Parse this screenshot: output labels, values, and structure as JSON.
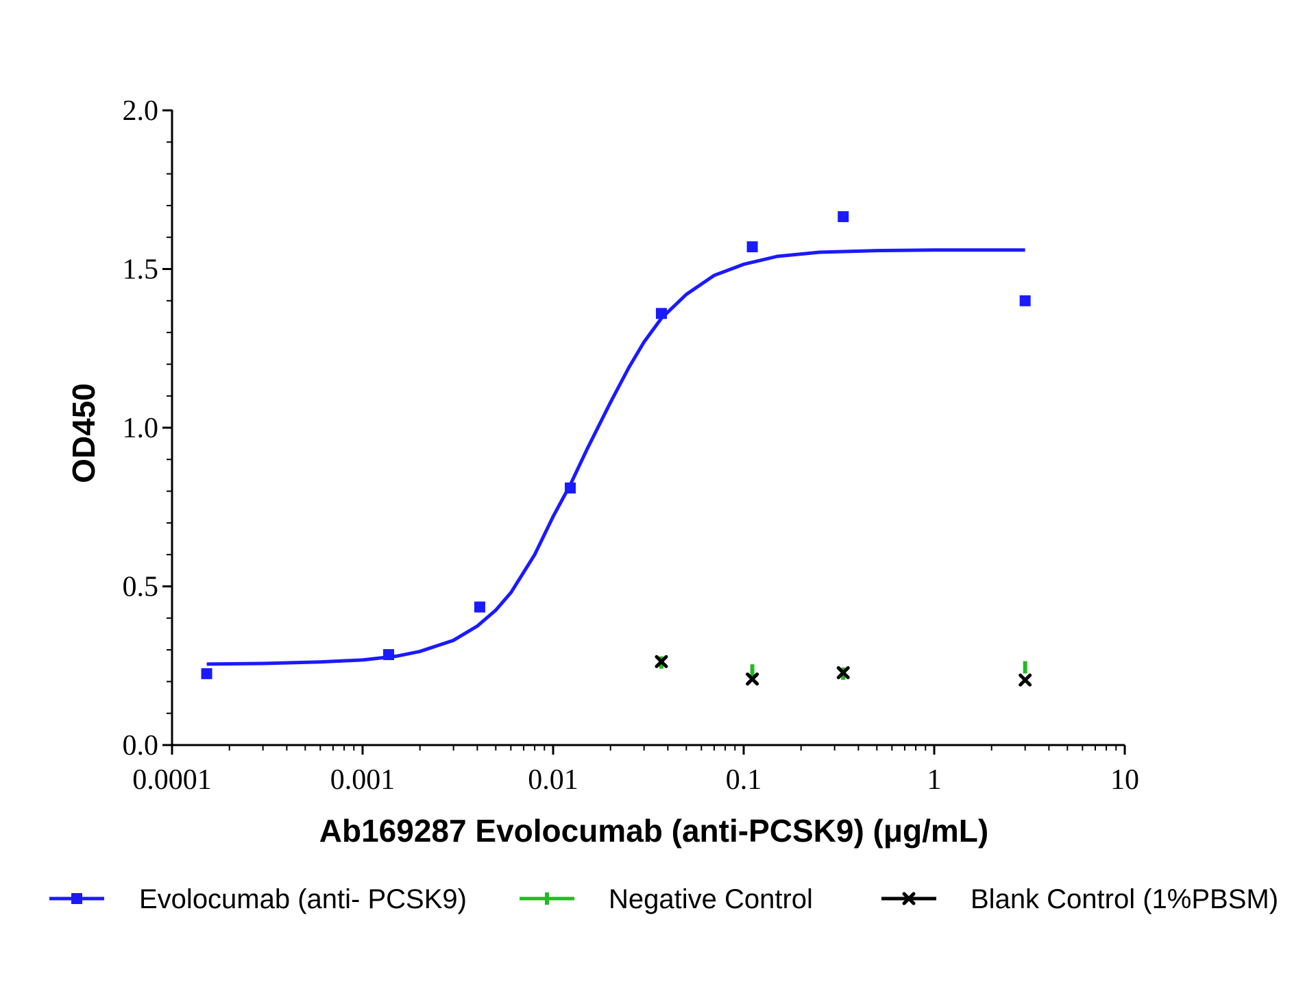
{
  "chart_data": {
    "type": "scatter",
    "title": "",
    "xlabel": "Ab169287 Evolocumab (anti-PCSK9) (μg/mL)",
    "ylabel": "OD450",
    "x_scale": "log",
    "xlim": [
      0.0001,
      10
    ],
    "ylim": [
      0,
      2.0
    ],
    "x_tick_labels": [
      "0.0001",
      "0.001",
      "0.01",
      "0.1",
      "1",
      "10"
    ],
    "x_tick_values": [
      0.0001,
      0.001,
      0.01,
      0.1,
      1,
      10
    ],
    "y_tick_labels": [
      "0.0",
      "0.5",
      "1.0",
      "1.5",
      "2.0"
    ],
    "y_tick_values": [
      0,
      0.5,
      1.0,
      1.5,
      2.0
    ],
    "grid": false,
    "legend_position": "bottom",
    "series": [
      {
        "name": "Evolocumab (anti- PCSK9)",
        "color": "#1a1aff",
        "marker": "square",
        "x": [
          0.000152,
          0.00137,
          0.00412,
          0.0123,
          0.037,
          0.111,
          0.333,
          3.0
        ],
        "y": [
          0.225,
          0.285,
          0.435,
          0.81,
          1.36,
          1.57,
          1.665,
          1.4
        ],
        "fit_curve": [
          {
            "x": 0.000152,
            "y": 0.255
          },
          {
            "x": 0.0003,
            "y": 0.257
          },
          {
            "x": 0.0006,
            "y": 0.262
          },
          {
            "x": 0.001,
            "y": 0.268
          },
          {
            "x": 0.0015,
            "y": 0.28
          },
          {
            "x": 0.002,
            "y": 0.295
          },
          {
            "x": 0.003,
            "y": 0.33
          },
          {
            "x": 0.004,
            "y": 0.375
          },
          {
            "x": 0.005,
            "y": 0.425
          },
          {
            "x": 0.006,
            "y": 0.48
          },
          {
            "x": 0.008,
            "y": 0.6
          },
          {
            "x": 0.01,
            "y": 0.72
          },
          {
            "x": 0.0123,
            "y": 0.82
          },
          {
            "x": 0.015,
            "y": 0.93
          },
          {
            "x": 0.02,
            "y": 1.08
          },
          {
            "x": 0.025,
            "y": 1.19
          },
          {
            "x": 0.03,
            "y": 1.27
          },
          {
            "x": 0.037,
            "y": 1.345
          },
          {
            "x": 0.05,
            "y": 1.42
          },
          {
            "x": 0.07,
            "y": 1.48
          },
          {
            "x": 0.1,
            "y": 1.515
          },
          {
            "x": 0.15,
            "y": 1.54
          },
          {
            "x": 0.25,
            "y": 1.553
          },
          {
            "x": 0.5,
            "y": 1.558
          },
          {
            "x": 1.0,
            "y": 1.56
          },
          {
            "x": 3.0,
            "y": 1.56
          }
        ]
      },
      {
        "name": "Negative Control",
        "color": "#22bb22",
        "marker": "tick",
        "x": [
          0.037,
          0.111,
          0.333,
          3.0
        ],
        "y": [
          0.26,
          0.235,
          0.225,
          0.245
        ]
      },
      {
        "name": "Blank Control (1%PBSM)",
        "color": "#000000",
        "marker": "x",
        "x": [
          0.037,
          0.111,
          0.333,
          3.0
        ],
        "y": [
          0.263,
          0.208,
          0.228,
          0.205
        ]
      }
    ]
  }
}
